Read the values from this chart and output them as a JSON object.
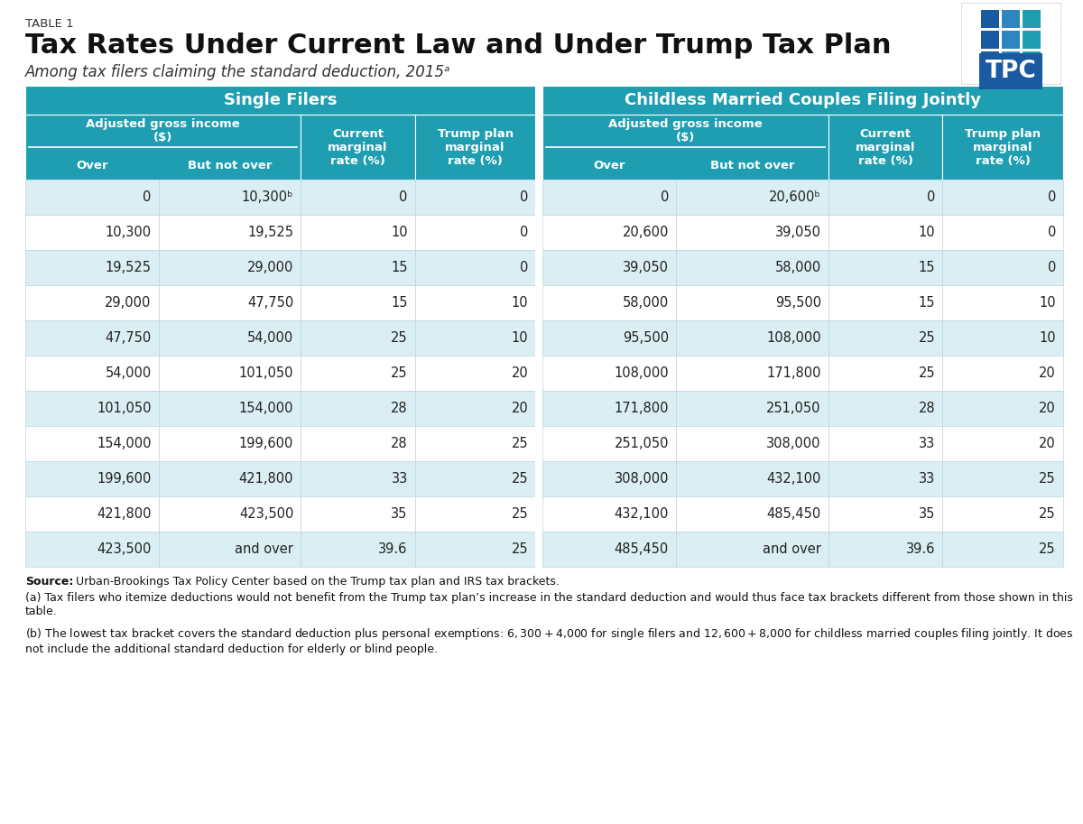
{
  "table1_label": "TABLE 1",
  "title": "Tax Rates Under Current Law and Under Trump Tax Plan",
  "subtitle": "Among tax filers claiming the standard deduction, 2015ᵃ",
  "header_color": "#1e9eb0",
  "alt_row_color": "#daeef3",
  "white_row_color": "#ffffff",
  "bg_color": "#ffffff",
  "text_color_dark": "#222222",
  "text_color_white": "#ffffff",
  "header_top": [
    "Single Filers",
    "Childless Married Couples Filing Jointly"
  ],
  "single_data": [
    [
      "0",
      "10,300ᵇ",
      "0",
      "0"
    ],
    [
      "10,300",
      "19,525",
      "10",
      "0"
    ],
    [
      "19,525",
      "29,000",
      "15",
      "0"
    ],
    [
      "29,000",
      "47,750",
      "15",
      "10"
    ],
    [
      "47,750",
      "54,000",
      "25",
      "10"
    ],
    [
      "54,000",
      "101,050",
      "25",
      "20"
    ],
    [
      "101,050",
      "154,000",
      "28",
      "20"
    ],
    [
      "154,000",
      "199,600",
      "28",
      "25"
    ],
    [
      "199,600",
      "421,800",
      "33",
      "25"
    ],
    [
      "421,800",
      "423,500",
      "35",
      "25"
    ],
    [
      "423,500",
      "and over",
      "39.6",
      "25"
    ]
  ],
  "married_data": [
    [
      "0",
      "20,600ᵇ",
      "0",
      "0"
    ],
    [
      "20,600",
      "39,050",
      "10",
      "0"
    ],
    [
      "39,050",
      "58,000",
      "15",
      "0"
    ],
    [
      "58,000",
      "95,500",
      "15",
      "10"
    ],
    [
      "95,500",
      "108,000",
      "25",
      "10"
    ],
    [
      "108,000",
      "171,800",
      "25",
      "20"
    ],
    [
      "171,800",
      "251,050",
      "28",
      "20"
    ],
    [
      "251,050",
      "308,000",
      "33",
      "20"
    ],
    [
      "308,000",
      "432,100",
      "33",
      "25"
    ],
    [
      "432,100",
      "485,450",
      "35",
      "25"
    ],
    [
      "485,450",
      "and over",
      "39.6",
      "25"
    ]
  ],
  "footnote_source": "Urban-Brookings Tax Policy Center based on the Trump tax plan and IRS tax brackets.",
  "footnote_a": "(a) Tax filers who itemize deductions would not benefit from the Trump tax plan’s increase in the standard deduction and would thus face tax brackets different from those shown in this table.",
  "footnote_b": "(b) The lowest tax bracket covers the standard deduction plus personal exemptions: $6,300 + $4,000 for single filers and $12,600 + $8,000 for childless married couples filing jointly. It does not include the additional standard deduction for elderly or blind people.",
  "tpc_logo_dark": "#1a5aa0",
  "tpc_logo_mid": "#2e86c1",
  "tpc_logo_light": "#1e9eb0"
}
